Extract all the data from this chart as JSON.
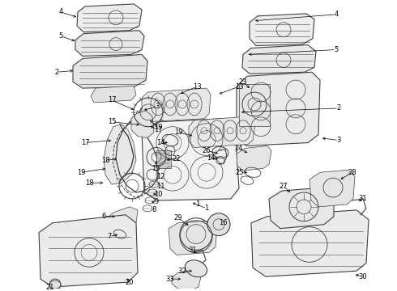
{
  "background_color": "#ffffff",
  "line_color": "#404040",
  "label_color": "#000000",
  "figsize": [
    4.9,
    3.6
  ],
  "dpi": 100
}
